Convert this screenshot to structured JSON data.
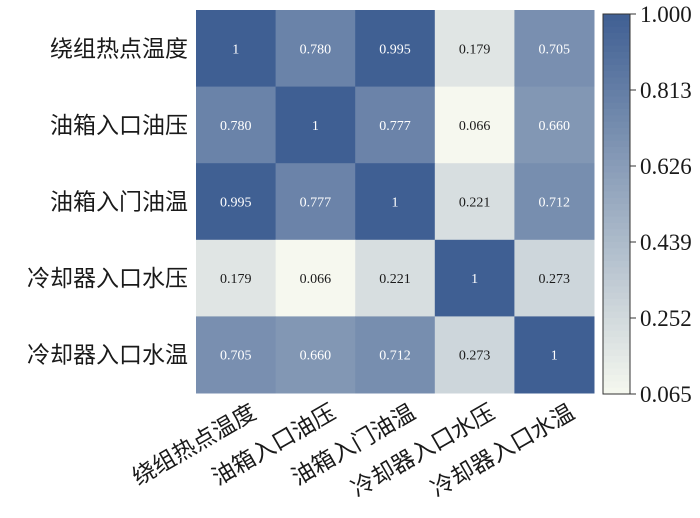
{
  "chart_data": {
    "type": "heatmap",
    "title": "",
    "xlabel": "",
    "ylabel": "",
    "categories": [
      "绕组热点温度",
      "油箱入口油压",
      "油箱入门油温",
      "冷却器入口水压",
      "冷却器入口水温"
    ],
    "rows": [
      "绕组热点温度",
      "油箱入口油压",
      "油箱入门油温",
      "冷却器入口水压",
      "冷却器入口水温"
    ],
    "values": [
      [
        1,
        0.78,
        0.995,
        0.179,
        0.705
      ],
      [
        0.78,
        1,
        0.777,
        0.066,
        0.66
      ],
      [
        0.995,
        0.777,
        1,
        0.221,
        0.712
      ],
      [
        0.179,
        0.066,
        0.221,
        1,
        0.273
      ],
      [
        0.705,
        0.66,
        0.712,
        0.273,
        1
      ]
    ],
    "value_labels": [
      [
        "1",
        "0.780",
        "0.995",
        "0.179",
        "0.705"
      ],
      [
        "0.780",
        "1",
        "0.777",
        "0.066",
        "0.660"
      ],
      [
        "0.995",
        "0.777",
        "1",
        "0.221",
        "0.712"
      ],
      [
        "0.179",
        "0.066",
        "0.221",
        "1",
        "0.273"
      ],
      [
        "0.705",
        "0.660",
        "0.712",
        "0.273",
        "1"
      ]
    ],
    "colorbar": {
      "range": [
        0.065,
        1.0
      ],
      "ticks": [
        "1.000",
        "0.813",
        "0.626",
        "0.439",
        "0.252",
        "0.065"
      ],
      "tick_values": [
        1.0,
        0.813,
        0.626,
        0.439,
        0.252,
        0.065
      ],
      "color_low": "#f6f8ef",
      "color_high": "#3f5f93"
    }
  }
}
